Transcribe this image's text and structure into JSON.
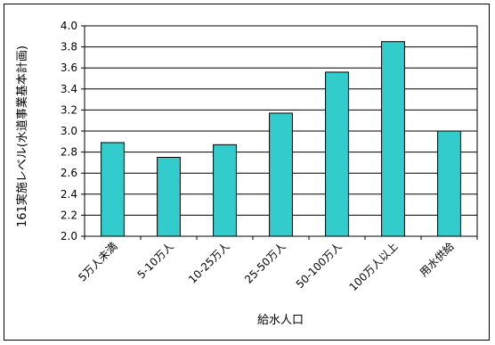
{
  "chart_data": {
    "type": "bar",
    "title": "",
    "xlabel": "給水人口",
    "ylabel": "161実施レベル(水道事業基本計画)",
    "categories": [
      "5万人未満",
      "5-10万人",
      "10-25万人",
      "25-50万人",
      "50-100万人",
      "100万人以上",
      "用水供給"
    ],
    "values": [
      2.89,
      2.75,
      2.87,
      3.17,
      3.56,
      3.85,
      3.0
    ],
    "ylim": [
      2.0,
      4.0
    ],
    "yticks": [
      "2.0",
      "2.2",
      "2.4",
      "2.6",
      "2.8",
      "3.0",
      "3.2",
      "3.4",
      "3.6",
      "3.8",
      "4.0"
    ],
    "grid": true,
    "legend": "none",
    "bar_color": "#33CCCC"
  }
}
